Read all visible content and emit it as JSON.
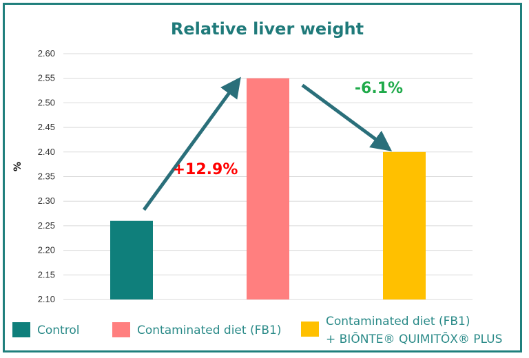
{
  "chart_data": {
    "type": "bar",
    "title": "Relative liver weight",
    "ylabel": "%",
    "xlabel": "",
    "ylim": [
      2.1,
      2.6
    ],
    "yticks": [
      "2.10",
      "2.15",
      "2.20",
      "2.25",
      "2.30",
      "2.35",
      "2.40",
      "2.45",
      "2.50",
      "2.55",
      "2.60"
    ],
    "grid": true,
    "legend_position": "bottom",
    "categories": [
      "Control",
      "Contaminated diet (FB1)",
      "Contaminated diet (FB1) + BIŌNTE® QUIMITŌX® PLUS"
    ],
    "values": [
      2.26,
      2.55,
      2.4
    ],
    "colors": [
      "#0f7f7b",
      "#ff7f7f",
      "#ffc000"
    ],
    "legend": [
      {
        "lines": [
          "Control"
        ]
      },
      {
        "lines": [
          "Contaminated diet (FB1)"
        ]
      },
      {
        "lines": [
          "Contaminated diet (FB1)",
          "+ BIŌNTE® QUIMITŌX® PLUS"
        ]
      }
    ],
    "annotations": [
      {
        "text": "+12.9%",
        "color": "#ff0000"
      },
      {
        "text": "-6.1%",
        "color": "#1faa4a"
      }
    ],
    "arrow_color": "#2a6f7a"
  }
}
